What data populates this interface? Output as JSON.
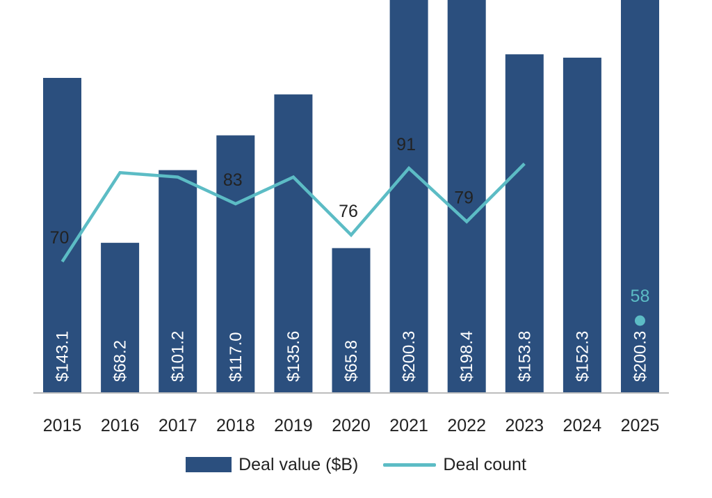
{
  "chart_data": {
    "type": "bar",
    "title": "",
    "xlabel": "",
    "ylabel": "",
    "categories": [
      "2015",
      "2016",
      "2017",
      "2018",
      "2019",
      "2020",
      "2021",
      "2022",
      "2023",
      "2024",
      "2025"
    ],
    "series": [
      {
        "name": "Deal value ($B)",
        "type": "bar",
        "color": "#2b4f7e",
        "values": [
          143.1,
          68.2,
          101.2,
          117.0,
          135.6,
          65.8,
          200.3,
          198.4,
          153.8,
          152.3,
          200.3
        ],
        "labels": [
          "$143.1",
          "$68.2",
          "$101.2",
          "$117.0",
          "$135.6",
          "$65.8",
          "$200.3",
          "$198.4",
          "$153.8",
          "$152.3",
          "$200.3"
        ]
      },
      {
        "name": "Deal count",
        "type": "line",
        "color": "#5cbcc5",
        "values": [
          70,
          90,
          89,
          83,
          89,
          76,
          91,
          79,
          92,
          null,
          null
        ],
        "labels": [
          "70",
          null,
          null,
          "83",
          null,
          "76",
          "91",
          "79",
          null,
          null,
          null
        ],
        "standalone_point": {
          "category": "2025",
          "value": 58,
          "label": "58"
        }
      }
    ],
    "value_axis_range": [
      0,
      178
    ],
    "count_axis_range": [
      40,
      100
    ],
    "grid": false,
    "legend": {
      "position": "bottom-center",
      "entries": [
        "Deal value ($B)",
        "Deal count"
      ]
    }
  }
}
